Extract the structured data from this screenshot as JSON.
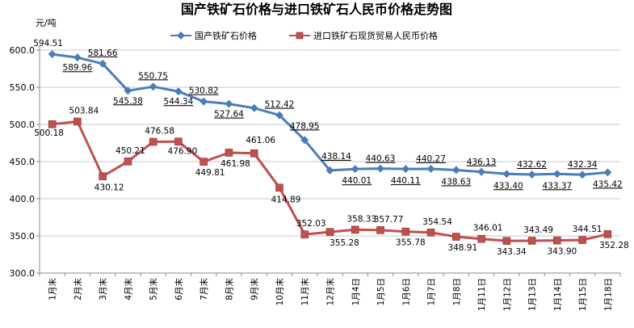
{
  "chart_data": {
    "type": "line",
    "title": "国产铁矿石价格与进口铁矿石人民币价格走势图",
    "ylabel": "元/吨",
    "ylim": [
      300,
      600
    ],
    "yticks": [
      "300.0",
      "350.0",
      "400.0",
      "450.0",
      "500.0",
      "550.0",
      "600.0"
    ],
    "grid": true,
    "legend_position": "top",
    "categories": [
      "1月末",
      "2月末",
      "3月末",
      "4月末",
      "5月末",
      "6月末",
      "7月末",
      "8月末",
      "9月末",
      "10月末",
      "11月末",
      "12月末",
      "1月4日",
      "1月5日",
      "1月6日",
      "1月7日",
      "1月8日",
      "1月11日",
      "1月12日",
      "1月13日",
      "1月14日",
      "1月15日",
      "1月18日"
    ],
    "series": [
      {
        "name": "国产铁矿石价格",
        "color": "#4a7ebb",
        "marker": "diamond",
        "values": [
          594.51,
          589.96,
          581.66,
          545.38,
          550.75,
          544.34,
          530.82,
          527.64,
          522.0,
          512.42,
          478.95,
          438.14,
          440.01,
          440.63,
          440.11,
          440.27,
          438.63,
          436.13,
          433.4,
          432.62,
          433.37,
          432.34,
          435.42
        ],
        "labels": [
          "594.51",
          "589.96",
          "581.66",
          "545.38",
          "550.75",
          "544.34",
          "530.82",
          "527.64",
          "",
          "512.42",
          "478.95",
          "438.14",
          "440.01",
          "440.63",
          "440.11",
          "440.27",
          "438.63",
          "436.13",
          "433.40",
          "432.62",
          "433.37",
          "432.34",
          "435.42"
        ]
      },
      {
        "name": "进口铁矿石现货贸易人民币价格",
        "color": "#c0504d",
        "marker": "square",
        "values": [
          500.18,
          503.84,
          430.12,
          450.21,
          476.58,
          476.9,
          449.81,
          461.98,
          461.06,
          414.89,
          352.03,
          355.28,
          358.33,
          357.77,
          355.78,
          354.54,
          348.91,
          346.01,
          343.34,
          343.49,
          343.9,
          344.51,
          352.28
        ],
        "labels": [
          "500.18",
          "503.84",
          "430.12",
          "450.21",
          "476.58",
          "476.90",
          "449.81",
          "461.98",
          "461.06",
          "414.89",
          "352.03",
          "355.28",
          "358.33",
          "357.77",
          "355.78",
          "354.54",
          "348.91",
          "346.01",
          "343.34",
          "343.49",
          "343.90",
          "344.51",
          "352.28"
        ]
      }
    ]
  }
}
